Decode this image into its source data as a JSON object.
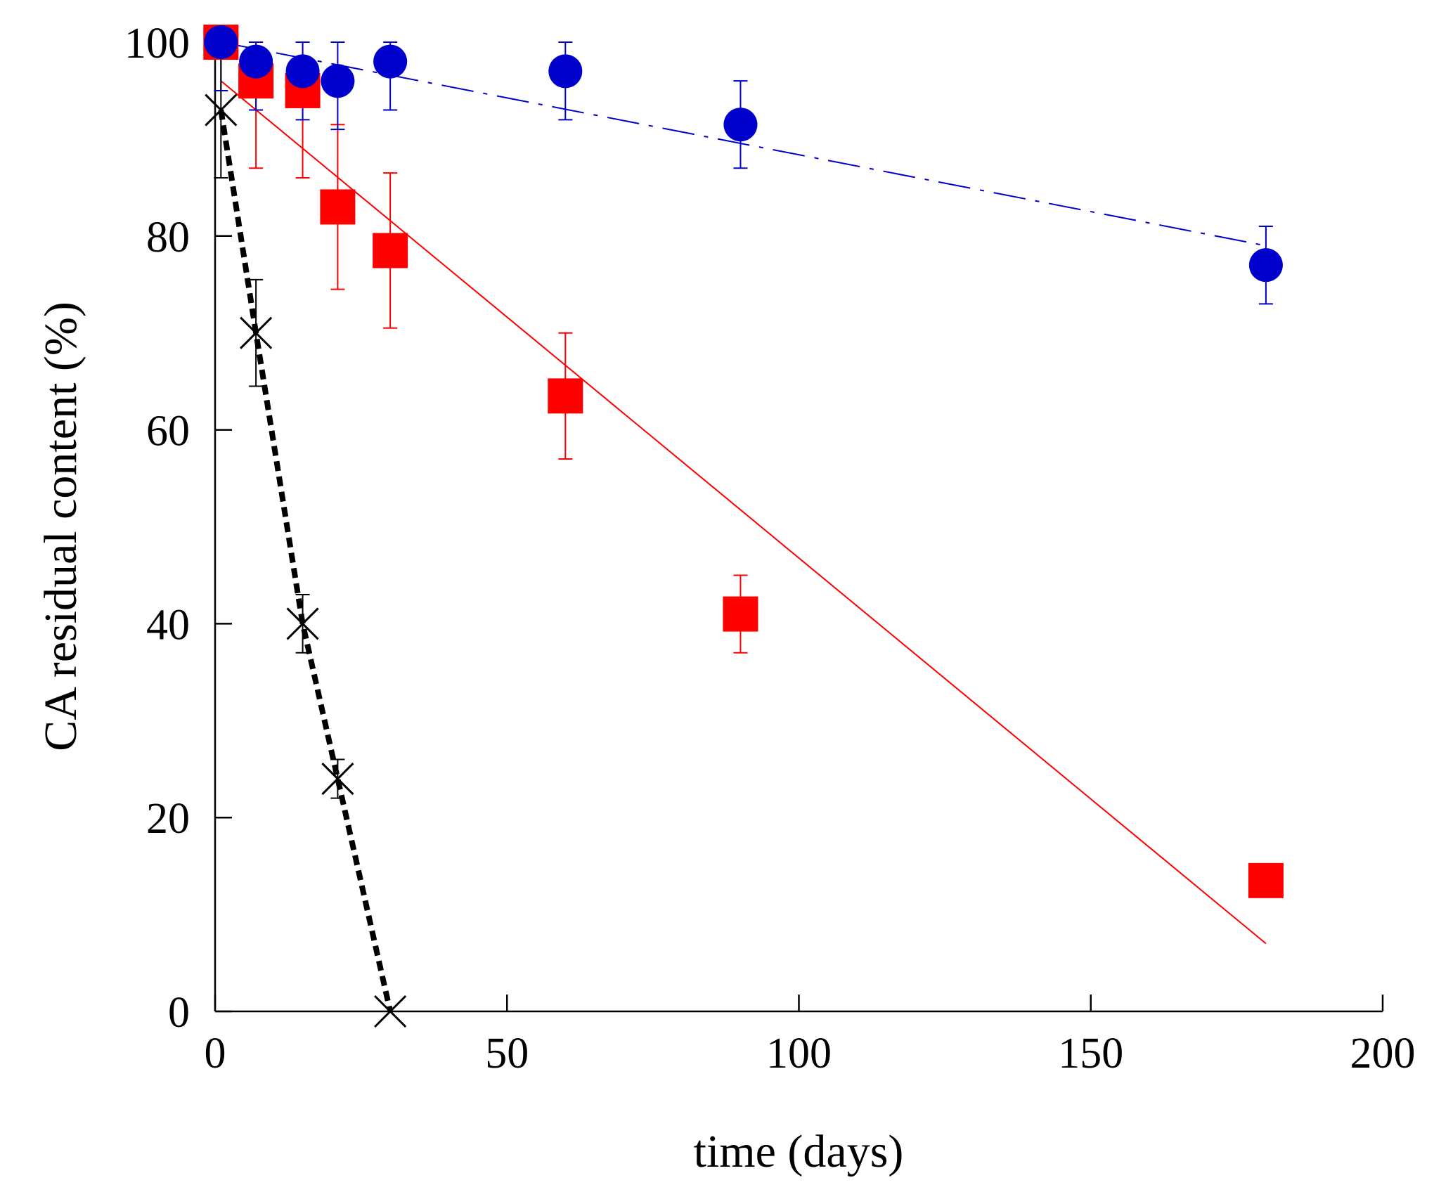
{
  "chart_data": {
    "type": "scatter",
    "title": "",
    "xlabel": "time (days)",
    "ylabel": "CA residual content (%)",
    "xlim": [
      0,
      200
    ],
    "ylim": [
      0,
      100
    ],
    "xticks": [
      0,
      50,
      100,
      150,
      200
    ],
    "yticks": [
      0,
      20,
      40,
      60,
      80,
      100
    ],
    "grid": false,
    "series": [
      {
        "name": "red squares",
        "marker": "square",
        "color": "#ff0000",
        "x": [
          1,
          7,
          15,
          21,
          30,
          60,
          90,
          180
        ],
        "y": [
          100,
          96,
          95,
          83,
          78.5,
          63.5,
          41,
          13.5
        ],
        "err": [
          0,
          9,
          9,
          8.5,
          8,
          6.5,
          4,
          0
        ],
        "fit": {
          "style": "solid",
          "x": [
            1,
            180
          ],
          "y": [
            96,
            7
          ]
        }
      },
      {
        "name": "blue circles",
        "marker": "circle",
        "color": "#0000cc",
        "x": [
          1,
          7,
          15,
          21,
          30,
          60,
          90,
          180
        ],
        "y": [
          100,
          98,
          97,
          96,
          98,
          97,
          91.5,
          77
        ],
        "err": [
          5,
          5,
          5,
          5,
          5,
          5,
          4.5,
          4
        ],
        "fit": {
          "style": "dashdot",
          "x": [
            1,
            180
          ],
          "y": [
            100,
            79
          ]
        }
      },
      {
        "name": "black crosses",
        "marker": "x",
        "color": "#000000",
        "x": [
          1,
          7,
          15,
          21,
          30
        ],
        "y": [
          93,
          70,
          40,
          24,
          0
        ],
        "err": [
          7,
          5.5,
          3,
          2,
          0
        ],
        "fit": {
          "style": "dotted",
          "x": [
            1,
            7,
            15,
            21,
            30
          ],
          "y": [
            93,
            70,
            40,
            24,
            0
          ]
        }
      }
    ]
  }
}
